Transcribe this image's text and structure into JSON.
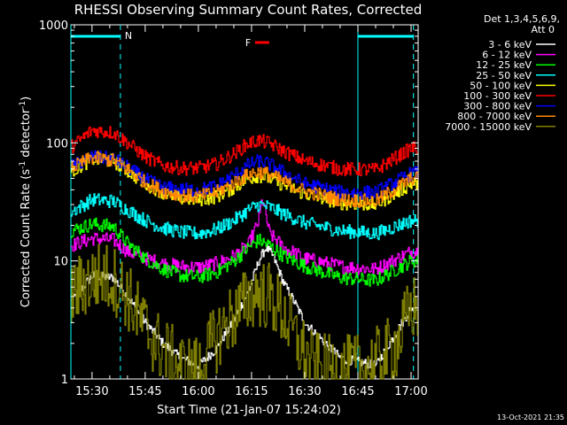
{
  "chart_data": {
    "type": "line",
    "title": "RHESSI Observing Summary Count Rates, Corrected",
    "xlabel": "Start Time (21-Jan-07 15:24:02)",
    "ylabel_main": "Corrected Count Rate (s",
    "ylabel_sup1": "-1",
    "ylabel_mid": " detector",
    "ylabel_sup2": "-1",
    "ylabel_end": ")",
    "yscale": "log",
    "ylim": [
      1,
      1000
    ],
    "xlim": [
      "15:24:02",
      "17:02:00"
    ],
    "ytick_labels": [
      "1",
      "10",
      "100",
      "1000"
    ],
    "xtick_labels": [
      "15:30",
      "15:45",
      "16:00",
      "16:15",
      "16:30",
      "16:45",
      "17:00"
    ],
    "legend_header": [
      "Det 1,3,4,5,6,9,",
      "Att 0"
    ],
    "legend_position": "right",
    "annotations": {
      "night_label": "N",
      "flare_label": "F",
      "night_intervals": [
        [
          "15:24:02",
          "15:38:00"
        ],
        [
          "16:45:00",
          "17:00:40"
        ]
      ],
      "flare_interval": [
        "16:16:00",
        "16:20:00"
      ],
      "night_color": "#00ffff",
      "flare_color": "#ff0000"
    },
    "timestamp": "13-Oct-2021 21:35",
    "series": [
      {
        "name": "3 - 6 keV",
        "color": "#ffffff",
        "x": [
          "15:24",
          "15:30",
          "15:36",
          "15:40",
          "15:45",
          "15:50",
          "15:55",
          "16:00",
          "16:05",
          "16:10",
          "16:14",
          "16:17",
          "16:19",
          "16:21",
          "16:24",
          "16:27",
          "16:30",
          "16:40",
          "16:50",
          "17:00"
        ],
        "y": [
          4.5,
          7.5,
          7.2,
          5,
          3,
          2,
          1.5,
          1.3,
          1.8,
          3.2,
          5.5,
          10,
          13,
          11,
          6.5,
          4.5,
          3,
          1.5,
          1.3,
          4
        ]
      },
      {
        "name": "6 - 12 keV",
        "color": "#ff00ff",
        "x": [
          "15:24",
          "15:30",
          "15:36",
          "15:40",
          "15:45",
          "15:50",
          "15:55",
          "16:00",
          "16:05",
          "16:10",
          "16:14",
          "16:17",
          "16:18",
          "16:20",
          "16:24",
          "16:30",
          "16:40",
          "16:50",
          "17:00"
        ],
        "y": [
          13.5,
          15.5,
          15,
          12,
          10.5,
          9.5,
          9,
          8.8,
          9.5,
          11,
          13.5,
          22,
          34,
          17,
          13,
          10.5,
          9,
          8.5,
          12
        ]
      },
      {
        "name": "12 - 25 keV",
        "color": "#00ff00",
        "x": [
          "15:24",
          "15:30",
          "15:36",
          "15:40",
          "15:45",
          "15:50",
          "15:55",
          "16:00",
          "16:05",
          "16:10",
          "16:14",
          "16:17",
          "16:20",
          "16:24",
          "16:30",
          "16:40",
          "16:50",
          "17:00"
        ],
        "y": [
          18,
          20.5,
          19.5,
          14,
          10.5,
          8.5,
          7.5,
          7.3,
          8,
          10,
          13,
          15,
          13.5,
          11,
          9,
          7.2,
          6.8,
          10
        ]
      },
      {
        "name": "25 - 50 keV",
        "color": "#00ffff",
        "x": [
          "15:24",
          "15:30",
          "15:36",
          "15:40",
          "15:45",
          "15:50",
          "15:55",
          "16:00",
          "16:05",
          "16:10",
          "16:14",
          "16:17",
          "16:20",
          "16:24",
          "16:30",
          "16:40",
          "16:50",
          "17:00"
        ],
        "y": [
          26,
          33,
          32,
          27,
          22,
          19,
          17.5,
          17,
          18.5,
          22,
          27,
          30,
          28.5,
          25,
          21,
          18,
          17,
          22
        ]
      },
      {
        "name": "50 - 100 keV",
        "color": "#ffff00",
        "x": [
          "15:24",
          "15:30",
          "15:36",
          "15:40",
          "15:45",
          "15:50",
          "15:55",
          "16:00",
          "16:05",
          "16:10",
          "16:14",
          "16:17",
          "16:20",
          "16:24",
          "16:30",
          "16:40",
          "16:50",
          "17:00"
        ],
        "y": [
          57,
          73,
          70,
          58,
          45,
          38,
          34,
          33,
          35,
          42,
          50,
          53,
          50,
          44,
          37,
          31,
          30,
          45
        ]
      },
      {
        "name": "100 - 300 keV",
        "color": "#ff0000",
        "x": [
          "15:24",
          "15:30",
          "15:36",
          "15:40",
          "15:45",
          "15:50",
          "15:55",
          "16:00",
          "16:05",
          "16:10",
          "16:14",
          "16:17",
          "16:20",
          "16:24",
          "16:30",
          "16:40",
          "16:50",
          "17:00"
        ],
        "y": [
          92,
          128,
          122,
          100,
          76,
          64,
          61,
          61,
          66,
          81,
          99,
          105,
          99,
          85,
          70,
          60,
          59,
          90
        ]
      },
      {
        "name": "300 - 800 keV",
        "color": "#0000ff",
        "x": [
          "15:24",
          "15:30",
          "15:36",
          "15:40",
          "15:45",
          "15:50",
          "15:55",
          "16:00",
          "16:05",
          "16:10",
          "16:14",
          "16:17",
          "16:20",
          "16:24",
          "16:30",
          "16:40",
          "16:50",
          "17:00"
        ],
        "y": [
          63,
          76,
          73,
          62,
          49,
          42,
          40,
          40,
          43,
          53,
          65,
          70,
          66,
          56,
          45,
          38,
          38,
          55
        ]
      },
      {
        "name": "800 - 7000 keV",
        "color": "#ff8800",
        "x": [
          "15:24",
          "15:30",
          "15:36",
          "15:40",
          "15:45",
          "15:50",
          "15:55",
          "16:00",
          "16:05",
          "16:10",
          "16:14",
          "16:17",
          "16:20",
          "16:24",
          "16:30",
          "16:40",
          "16:50",
          "17:00"
        ],
        "y": [
          61,
          75,
          71,
          60,
          46,
          39,
          36,
          35,
          38,
          46,
          54,
          57,
          54,
          47,
          39,
          33,
          32,
          50
        ]
      },
      {
        "name": "7000 - 15000 keV",
        "color": "#808000",
        "x": [
          "15:24",
          "15:28",
          "15:32",
          "15:36",
          "15:40",
          "15:44",
          "15:48",
          "15:52",
          "15:56",
          "16:00",
          "16:04",
          "16:08",
          "16:12",
          "16:16",
          "16:20",
          "16:24",
          "16:28",
          "16:32",
          "16:36",
          "16:40",
          "16:44",
          "16:48",
          "16:52",
          "16:56",
          "17:00"
        ],
        "y": [
          5,
          6.5,
          7.5,
          7,
          5,
          3,
          2,
          1.5,
          1.2,
          1.2,
          2,
          3,
          4,
          5.5,
          5,
          3.5,
          2,
          1.3,
          1.2,
          1.2,
          1.2,
          1.3,
          1.5,
          2,
          4
        ]
      }
    ]
  }
}
